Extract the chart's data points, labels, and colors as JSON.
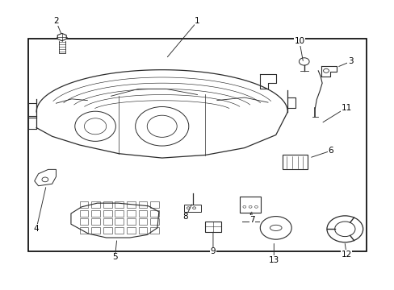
{
  "bg_color": "#ffffff",
  "border_color": "#000000",
  "line_color": "#2a2a2a",
  "text_color": "#000000",
  "fig_width": 4.89,
  "fig_height": 3.6,
  "dpi": 100,
  "border": [
    0.07,
    0.13,
    0.93,
    0.87
  ],
  "labels": {
    "1": [
      0.5,
      0.93,
      0.42,
      0.8
    ],
    "2": [
      0.14,
      0.93,
      0.155,
      0.88
    ],
    "3": [
      0.89,
      0.79,
      0.855,
      0.77
    ],
    "4": [
      0.09,
      0.21,
      0.115,
      0.36
    ],
    "5": [
      0.29,
      0.11,
      0.295,
      0.175
    ],
    "6": [
      0.84,
      0.48,
      0.785,
      0.455
    ],
    "7": [
      0.64,
      0.24,
      0.638,
      0.275
    ],
    "8": [
      0.47,
      0.25,
      0.488,
      0.3
    ],
    "9": [
      0.54,
      0.13,
      0.54,
      0.205
    ],
    "10": [
      0.76,
      0.86,
      0.77,
      0.785
    ],
    "11": [
      0.88,
      0.63,
      0.815,
      0.575
    ],
    "12": [
      0.88,
      0.12,
      0.875,
      0.165
    ],
    "13": [
      0.695,
      0.1,
      0.695,
      0.165
    ]
  }
}
